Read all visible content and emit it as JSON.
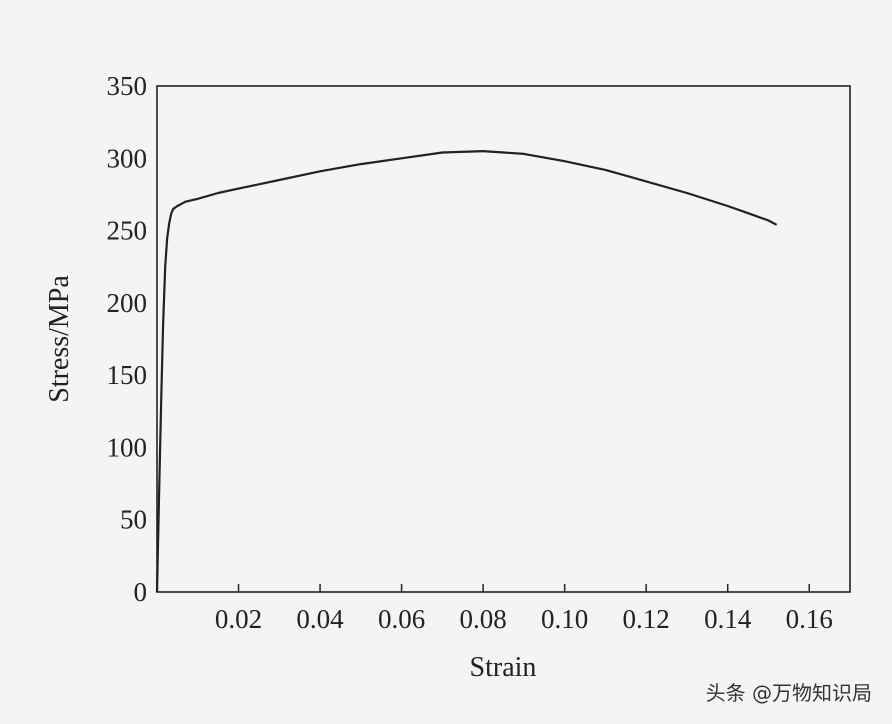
{
  "chart_data": {
    "type": "line",
    "title": "",
    "xlabel": "Strain",
    "ylabel": "Stress/MPa",
    "xlim": [
      0,
      0.17
    ],
    "ylim": [
      0,
      350
    ],
    "x_ticks": [
      "0.02",
      "0.04",
      "0.06",
      "0.08",
      "0.10",
      "0.12",
      "0.14",
      "0.16"
    ],
    "y_ticks": [
      "0",
      "50",
      "100",
      "150",
      "200",
      "250",
      "300",
      "350"
    ],
    "grid": false,
    "legend": "none",
    "series": [
      {
        "color": "#222222",
        "x": [
          0,
          0.0005,
          0.001,
          0.0015,
          0.002,
          0.0025,
          0.003,
          0.0035,
          0.004,
          0.005,
          0.007,
          0.01,
          0.015,
          0.02,
          0.025,
          0.03,
          0.04,
          0.05,
          0.06,
          0.07,
          0.08,
          0.09,
          0.1,
          0.11,
          0.12,
          0.13,
          0.14,
          0.145,
          0.15,
          0.152
        ],
        "y": [
          0,
          65,
          130,
          185,
          225,
          245,
          255,
          262,
          265,
          267,
          270,
          272,
          276,
          279,
          282,
          285,
          291,
          296,
          300,
          304,
          305,
          303,
          298,
          292,
          284,
          276,
          267,
          262,
          257,
          254
        ]
      }
    ]
  },
  "watermark": "头条 @万物知识局"
}
